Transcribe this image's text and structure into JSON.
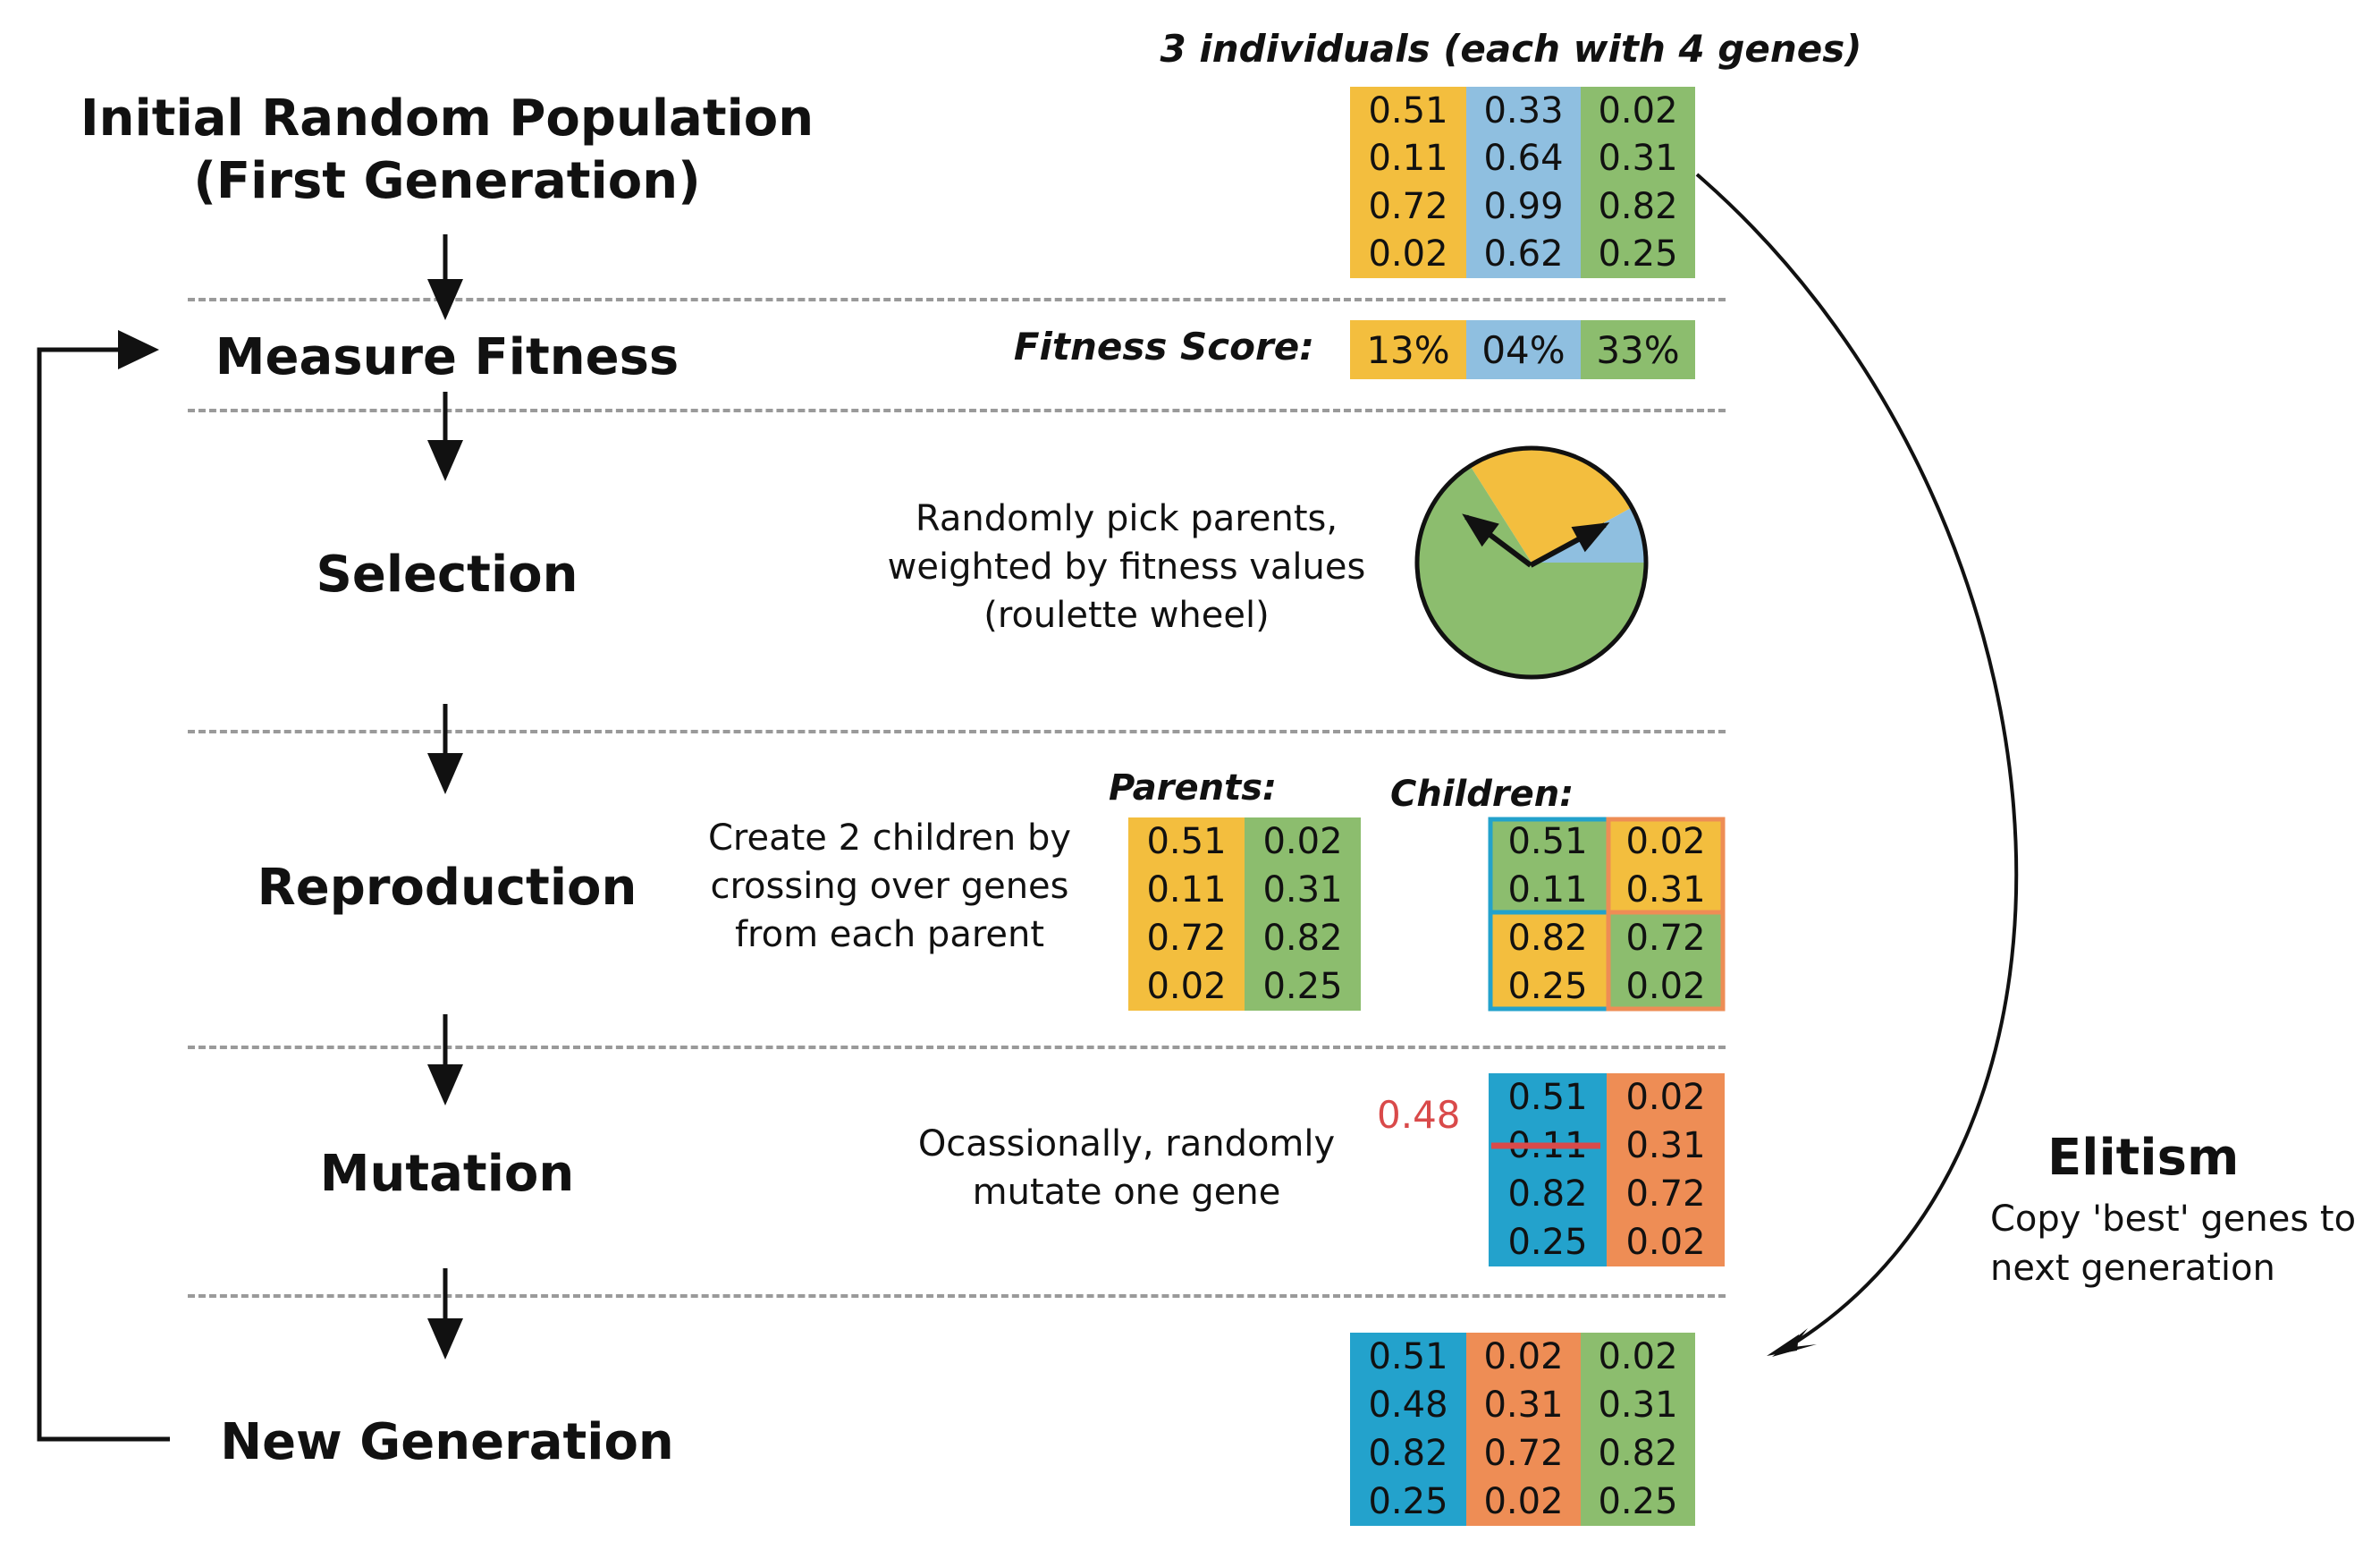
{
  "colors": {
    "yellow": "#f3be3e",
    "blue_light": "#8fbfe0",
    "green": "#8cbd6e",
    "teal": "#23a2cc",
    "orange": "#ee8d55",
    "red": "#d94a4a"
  },
  "stages": {
    "initial_line1": "Initial Random Population",
    "initial_line2": "(First Generation)",
    "measure": "Measure Fitness",
    "selection": "Selection",
    "reproduction": "Reproduction",
    "mutation": "Mutation",
    "new_generation": "New Generation"
  },
  "population": {
    "header": "3 individuals (each with 4 genes)",
    "rows": [
      [
        "0.51",
        "0.33",
        "0.02"
      ],
      [
        "0.11",
        "0.64",
        "0.31"
      ],
      [
        "0.72",
        "0.99",
        "0.82"
      ],
      [
        "0.02",
        "0.62",
        "0.25"
      ]
    ]
  },
  "fitness": {
    "label": "Fitness Score:",
    "scores": [
      "13%",
      "04%",
      "33%"
    ]
  },
  "selection": {
    "line1": "Randomly pick parents,",
    "line2": "weighted by fitness values",
    "line3": "(roulette wheel)",
    "wheel_shares": [
      0.26,
      0.08,
      0.66
    ]
  },
  "reproduction": {
    "line1": "Create 2 children by",
    "line2": "crossing over genes",
    "line3": "from each parent",
    "parents_label": "Parents:",
    "children_label": "Children:",
    "parents": [
      [
        "0.51",
        "0.02"
      ],
      [
        "0.11",
        "0.31"
      ],
      [
        "0.72",
        "0.82"
      ],
      [
        "0.02",
        "0.25"
      ]
    ],
    "children": [
      [
        "0.51",
        "0.02"
      ],
      [
        "0.11",
        "0.31"
      ],
      [
        "0.82",
        "0.72"
      ],
      [
        "0.25",
        "0.02"
      ]
    ]
  },
  "mutation": {
    "line1": "Ocassionally, randomly",
    "line2": "mutate one gene",
    "new_value": "0.48",
    "rows": [
      [
        "0.51",
        "0.02"
      ],
      [
        "0.11",
        "0.31"
      ],
      [
        "0.82",
        "0.72"
      ],
      [
        "0.25",
        "0.02"
      ]
    ]
  },
  "new_generation": {
    "rows": [
      [
        "0.51",
        "0.02",
        "0.02"
      ],
      [
        "0.48",
        "0.31",
        "0.31"
      ],
      [
        "0.82",
        "0.72",
        "0.82"
      ],
      [
        "0.25",
        "0.02",
        "0.25"
      ]
    ]
  },
  "elitism": {
    "title": "Elitism",
    "line1": "Copy 'best' genes to",
    "line2": "next generation"
  }
}
